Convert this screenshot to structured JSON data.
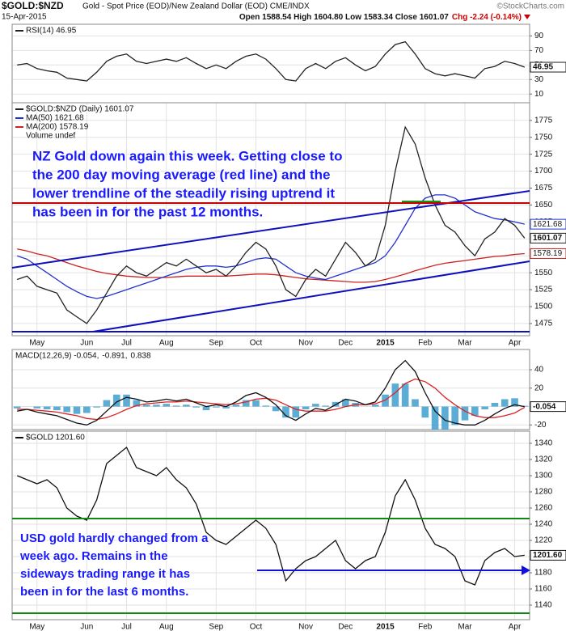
{
  "header": {
    "symbol": "$GOLD:$NZD",
    "description": "Gold - Spot Price (EOD)/New Zealand Dollar (EOD) CME/INDX",
    "date": "15-Apr-2015",
    "quote": "Open 1588.54 High 1604.80 Low 1583.34 Close 1601.07",
    "change": "Chg -2.24 (-0.14%)",
    "credit": "©StockCharts.com"
  },
  "chart_data": [
    {
      "type": "line",
      "ylim": [
        -2,
        106
      ],
      "yticks": [
        10,
        30,
        50,
        70,
        90
      ],
      "grid": true,
      "series": [
        {
          "name": "RSI(14) 46.95",
          "color": "#222222",
          "tag_last": true,
          "values": [
            50,
            52,
            45,
            42,
            40,
            32,
            30,
            28,
            40,
            55,
            62,
            65,
            55,
            52,
            55,
            58,
            55,
            60,
            52,
            45,
            50,
            45,
            55,
            62,
            65,
            58,
            45,
            30,
            28,
            45,
            52,
            45,
            55,
            60,
            50,
            42,
            48,
            65,
            78,
            82,
            65,
            45,
            38,
            35,
            38,
            35,
            32,
            45,
            48,
            55,
            52,
            46.95
          ]
        }
      ]
    },
    {
      "type": "line",
      "ylim": [
        1457,
        1801
      ],
      "yticks": [
        1475,
        1500,
        1525,
        1550,
        1575,
        1600,
        1625,
        1650,
        1675,
        1700,
        1725,
        1750,
        1775
      ],
      "grid": true,
      "categories": [
        null,
        null,
        "May",
        null,
        null,
        null,
        null,
        "Jun",
        null,
        null,
        null,
        "Jul",
        null,
        null,
        null,
        "Aug",
        null,
        null,
        null,
        null,
        "Sep",
        null,
        null,
        null,
        "Oct",
        null,
        null,
        null,
        null,
        "Nov",
        null,
        null,
        null,
        "Dec",
        null,
        null,
        null,
        "2015",
        null,
        null,
        null,
        "Feb",
        null,
        null,
        null,
        "Mar",
        null,
        null,
        null,
        null,
        "Apr",
        null
      ],
      "series": [
        {
          "name": "$GOLD:$NZD (Daily) 1601.07",
          "color": "#222222",
          "tag_last": true,
          "values": [
            1540,
            1545,
            1530,
            1525,
            1520,
            1495,
            1485,
            1475,
            1495,
            1520,
            1545,
            1560,
            1550,
            1545,
            1555,
            1565,
            1560,
            1570,
            1560,
            1550,
            1555,
            1545,
            1560,
            1580,
            1595,
            1585,
            1560,
            1525,
            1515,
            1540,
            1555,
            1545,
            1570,
            1595,
            1580,
            1560,
            1570,
            1620,
            1700,
            1765,
            1740,
            1690,
            1650,
            1620,
            1610,
            1590,
            1575,
            1600,
            1610,
            1630,
            1620,
            1601.07
          ]
        },
        {
          "name": "MA(50) 1621.68",
          "color": "#2233cc",
          "tag_last": true,
          "values": [
            1575,
            1570,
            1560,
            1550,
            1540,
            1530,
            1522,
            1515,
            1512,
            1515,
            1520,
            1525,
            1530,
            1535,
            1540,
            1545,
            1550,
            1555,
            1558,
            1560,
            1560,
            1558,
            1560,
            1565,
            1570,
            1572,
            1570,
            1560,
            1550,
            1545,
            1542,
            1540,
            1545,
            1550,
            1555,
            1560,
            1565,
            1575,
            1595,
            1620,
            1645,
            1660,
            1665,
            1665,
            1660,
            1650,
            1640,
            1635,
            1630,
            1628,
            1625,
            1621.68
          ]
        },
        {
          "name": "MA(200) 1578.19",
          "color": "#cc2222",
          "tag_last": true,
          "values": [
            1585,
            1582,
            1578,
            1575,
            1570,
            1565,
            1560,
            1556,
            1552,
            1549,
            1547,
            1545,
            1544,
            1543,
            1543,
            1543,
            1544,
            1545,
            1545,
            1545,
            1545,
            1545,
            1546,
            1547,
            1548,
            1548,
            1547,
            1545,
            1543,
            1541,
            1540,
            1539,
            1538,
            1537,
            1536,
            1536,
            1537,
            1540,
            1544,
            1548,
            1553,
            1557,
            1561,
            1564,
            1566,
            1568,
            1570,
            1572,
            1574,
            1575,
            1577,
            1578.19
          ]
        }
      ],
      "legend_extra": [
        "Volume undef"
      ],
      "annotation": [
        "NZ Gold down again this week. Getting close to",
        "the 200 day moving average (red line) and the",
        "lower trendline of the steadily rising uptrend it",
        "has been in for the past 12 months."
      ]
    },
    {
      "type": "line",
      "ylim": [
        -25,
        62
      ],
      "yticks": [
        -20,
        0,
        20,
        40
      ],
      "grid": true,
      "legend_inline": true,
      "series": [
        {
          "name": "MACD(12,26,9) -0.054,",
          "color": "#111111",
          "tag_last": true,
          "values": [
            -5,
            -3,
            -6,
            -8,
            -10,
            -14,
            -18,
            -20,
            -15,
            -5,
            5,
            10,
            8,
            5,
            6,
            8,
            6,
            8,
            4,
            0,
            2,
            0,
            5,
            12,
            15,
            10,
            2,
            -10,
            -15,
            -8,
            -2,
            -4,
            2,
            8,
            6,
            2,
            5,
            20,
            40,
            50,
            38,
            15,
            -5,
            -15,
            -18,
            -20,
            -20,
            -15,
            -8,
            -2,
            2,
            -0.054
          ]
        },
        {
          "name": "-0.891,",
          "color": "#dd2222",
          "values": [
            -3,
            -3,
            -4,
            -5,
            -6,
            -8,
            -10,
            -13,
            -14,
            -12,
            -8,
            -3,
            1,
            3,
            4,
            5,
            5,
            6,
            5,
            4,
            3,
            2,
            3,
            5,
            8,
            9,
            7,
            2,
            -3,
            -5,
            -5,
            -5,
            -3,
            0,
            2,
            2,
            3,
            7,
            15,
            25,
            30,
            27,
            20,
            10,
            2,
            -5,
            -10,
            -12,
            -12,
            -10,
            -7,
            -0.891
          ]
        },
        {
          "name": "0.838",
          "color": "#3399cc",
          "type": "bar",
          "values": [
            -2,
            0,
            -2,
            -3,
            -4,
            -6,
            -8,
            -7,
            -1,
            7,
            13,
            13,
            7,
            2,
            2,
            3,
            1,
            2,
            -1,
            -4,
            -1,
            -2,
            2,
            7,
            7,
            1,
            -5,
            -12,
            -12,
            -3,
            3,
            1,
            5,
            8,
            4,
            0,
            2,
            13,
            25,
            25,
            8,
            -12,
            -25,
            -25,
            -20,
            -15,
            -10,
            -3,
            4,
            8,
            9,
            0.838
          ]
        }
      ]
    },
    {
      "type": "line",
      "ylim": [
        1122,
        1355
      ],
      "yticks": [
        1140,
        1160,
        1180,
        1200,
        1220,
        1240,
        1260,
        1280,
        1300,
        1320,
        1340
      ],
      "grid": true,
      "categories": [
        null,
        null,
        "May",
        null,
        null,
        null,
        null,
        "Jun",
        null,
        null,
        null,
        "Jul",
        null,
        null,
        null,
        "Aug",
        null,
        null,
        null,
        null,
        "Sep",
        null,
        null,
        null,
        "Oct",
        null,
        null,
        null,
        null,
        "Nov",
        null,
        null,
        null,
        "Dec",
        null,
        null,
        null,
        "2015",
        null,
        null,
        null,
        "Feb",
        null,
        null,
        null,
        "Mar",
        null,
        null,
        null,
        null,
        "Apr",
        null
      ],
      "series": [
        {
          "name": "$GOLD 1201.60",
          "color": "#111111",
          "tag_last": true,
          "last_label": "1201.60",
          "values": [
            1300,
            1295,
            1290,
            1295,
            1285,
            1260,
            1250,
            1245,
            1270,
            1315,
            1325,
            1335,
            1310,
            1305,
            1300,
            1310,
            1295,
            1285,
            1265,
            1230,
            1220,
            1215,
            1225,
            1235,
            1245,
            1235,
            1215,
            1170,
            1185,
            1195,
            1200,
            1210,
            1220,
            1195,
            1185,
            1195,
            1200,
            1230,
            1275,
            1295,
            1270,
            1235,
            1215,
            1210,
            1200,
            1170,
            1165,
            1195,
            1205,
            1210,
            1200,
            1201.6
          ]
        }
      ],
      "annotation": [
        "USD gold hardly changed from a",
        "week ago. Remains in the",
        "sideways trading range it has",
        "been in for the last 6 months."
      ]
    }
  ]
}
